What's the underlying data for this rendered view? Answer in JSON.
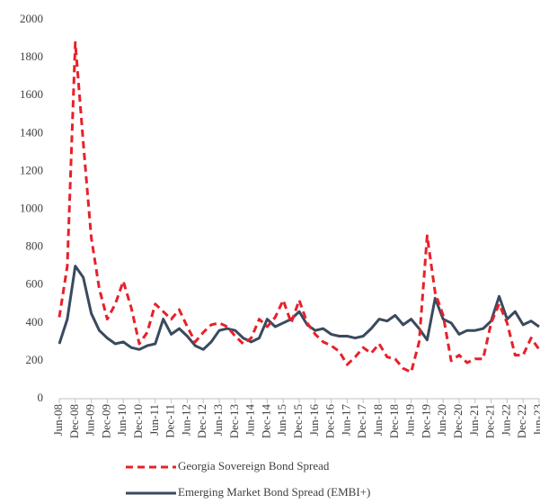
{
  "chart_data": {
    "type": "line",
    "categories": [
      "Jun-08",
      null,
      "Dec-08",
      null,
      "Jun-09",
      null,
      "Dec-09",
      null,
      "Jun-10",
      null,
      "Dec-10",
      null,
      "Jun-11",
      null,
      "Dec-11",
      null,
      "Jun-12",
      null,
      "Dec-12",
      null,
      "Jun-13",
      null,
      "Dec-13",
      null,
      "Jun-14",
      null,
      "Dec-14",
      null,
      "Jun-15",
      null,
      "Dec-15",
      null,
      "Jun-16",
      null,
      "Dec-16",
      null,
      "Jun-17",
      null,
      "Dec-17",
      null,
      "Jun-18",
      null,
      "Dec-18",
      null,
      "Jun-19",
      null,
      "Dec-19",
      null,
      "Jun-20",
      null,
      "Dec-20",
      null,
      "Jun-21",
      null,
      "Dec-21",
      null,
      "Jun-22",
      null,
      "Dec-22",
      null,
      "Jun-23"
    ],
    "series": [
      {
        "name": "Georgia Sovereign Bond Spread",
        "color": "#e8202a",
        "dash": true,
        "values": [
          430,
          700,
          1880,
          1350,
          850,
          580,
          420,
          500,
          620,
          480,
          290,
          350,
          500,
          460,
          420,
          470,
          380,
          300,
          350,
          390,
          400,
          380,
          330,
          290,
          320,
          420,
          380,
          430,
          520,
          400,
          520,
          400,
          340,
          300,
          280,
          250,
          180,
          220,
          270,
          240,
          290,
          220,
          210,
          160,
          140,
          300,
          860,
          560,
          440,
          200,
          230,
          190,
          210,
          210,
          400,
          500,
          400,
          230,
          230,
          320,
          260
        ]
      },
      {
        "name": "Emerging Market Bond Spread (EMBI+)",
        "color": "#3a4a5e",
        "dash": false,
        "values": [
          290,
          420,
          700,
          640,
          450,
          360,
          320,
          290,
          300,
          270,
          260,
          280,
          290,
          420,
          340,
          370,
          330,
          280,
          260,
          300,
          360,
          370,
          360,
          320,
          300,
          320,
          420,
          380,
          400,
          420,
          460,
          390,
          360,
          370,
          340,
          330,
          330,
          320,
          330,
          370,
          420,
          410,
          440,
          390,
          420,
          370,
          310,
          530,
          420,
          400,
          340,
          360,
          360,
          370,
          410,
          540,
          420,
          460,
          390,
          410,
          380
        ]
      }
    ],
    "ylim": [
      0,
      2000
    ],
    "yticks": [
      0,
      200,
      400,
      600,
      800,
      1000,
      1200,
      1400,
      1600,
      1800,
      2000
    ]
  }
}
